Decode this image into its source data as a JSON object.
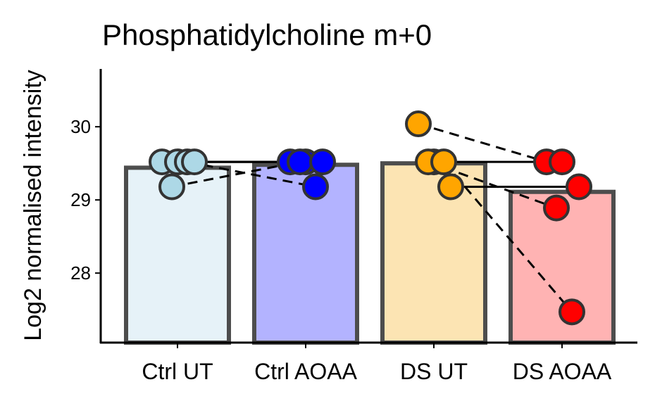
{
  "chart_data": {
    "type": "bar",
    "title": "Phosphatidylcholine m+0",
    "y_label": "Log2 normalised intensity",
    "categories": [
      "Ctrl UT",
      "Ctrl AOAA",
      "DS UT",
      "DS AOAA"
    ],
    "values": [
      29.44,
      29.48,
      29.5,
      29.11
    ],
    "colors": [
      "#e6f2f8",
      "#b3b3ff",
      "#fce4b3",
      "#ffb3b3"
    ],
    "point_colors": [
      "#add8e6",
      "#0000ff",
      "#ffa500",
      "#ff0000"
    ],
    "points": [
      [
        29.52,
        29.52,
        29.18,
        29.52,
        29.52
      ],
      [
        29.52,
        29.52,
        29.52,
        29.18,
        29.52
      ],
      [
        30.04,
        29.52,
        29.52,
        29.52,
        29.18
      ],
      [
        29.52,
        29.52,
        28.89,
        27.47,
        29.18
      ]
    ],
    "pairs": [
      [
        0,
        1
      ],
      [
        2,
        3
      ]
    ],
    "ylim": [
      27.05,
      30.79
    ],
    "yticks": [
      28,
      29,
      30
    ],
    "grid": false
  }
}
